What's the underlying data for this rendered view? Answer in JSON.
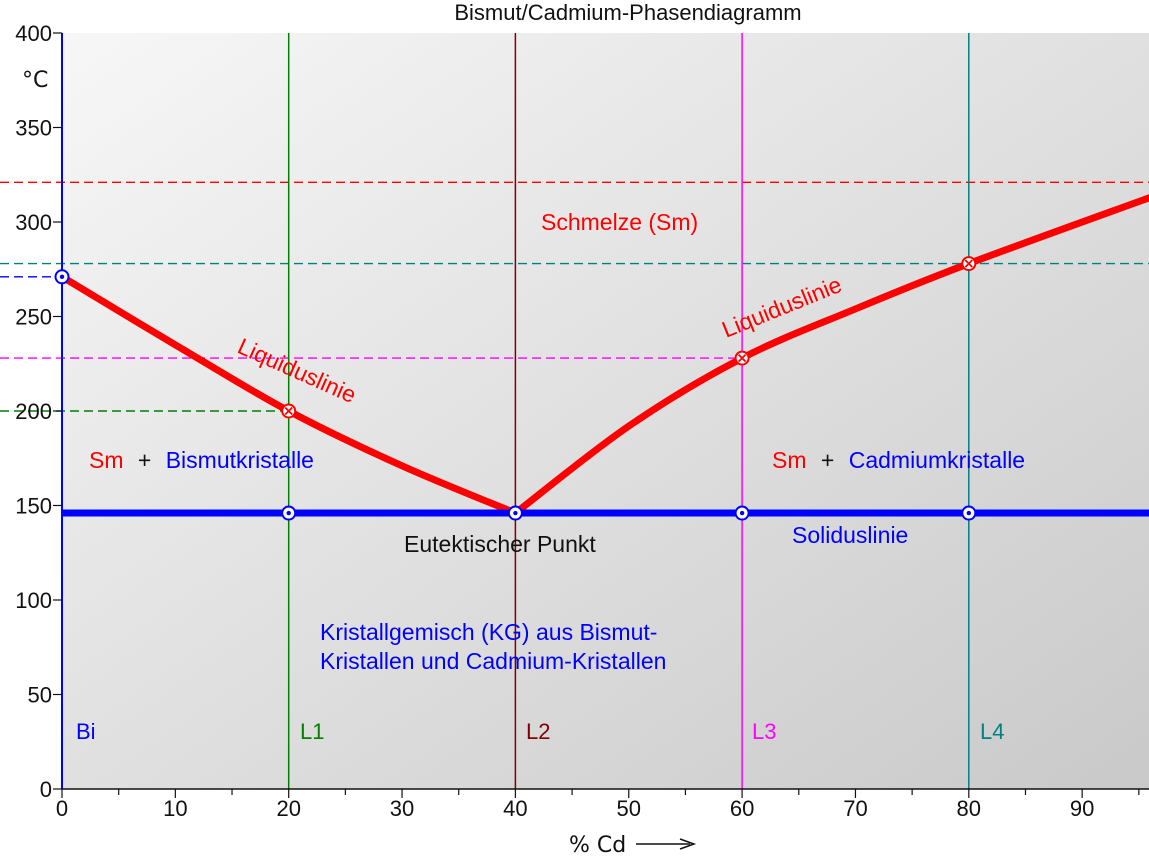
{
  "title": "Bismut/Cadmium-Phasendiagramm",
  "colors": {
    "red": "#ff0000",
    "blue": "#0000ff",
    "l1": "#008000",
    "l2": "#800000",
    "l3": "#ff00ff",
    "l4": "#008080",
    "blue_hline": "#0000ff",
    "green_hline": "#008000",
    "magenta_hline": "#ff00ff",
    "teal_hline": "#008080",
    "red_hline": "#ff0000"
  },
  "chart_data": {
    "type": "line",
    "title": "Bismut/Cadmium-Phasendiagramm",
    "xlabel": "% Cd",
    "ylabel": "°C",
    "xlim": [
      0,
      96
    ],
    "ylim": [
      0,
      400
    ],
    "xticks": [
      "0",
      "10",
      "20",
      "30",
      "40",
      "50",
      "60",
      "70",
      "80",
      "90"
    ],
    "yticks": [
      "0",
      "50",
      "100",
      "150",
      "200",
      "250",
      "300",
      "350",
      "400"
    ],
    "liquidus_left": [
      [
        0,
        271
      ],
      [
        10,
        235
      ],
      [
        20,
        200
      ],
      [
        30,
        171
      ],
      [
        40,
        146
      ]
    ],
    "liquidus_right": [
      [
        40,
        146
      ],
      [
        50,
        192
      ],
      [
        60,
        228
      ],
      [
        70,
        254
      ],
      [
        80,
        278
      ],
      [
        96,
        313
      ]
    ],
    "solidus": [
      [
        0,
        146
      ],
      [
        96,
        146
      ]
    ],
    "markers_open": [
      [
        0,
        271
      ],
      [
        20,
        146
      ],
      [
        40,
        146
      ],
      [
        60,
        146
      ],
      [
        80,
        146
      ]
    ],
    "markers_cross": [
      [
        20,
        200
      ],
      [
        60,
        228
      ],
      [
        80,
        278
      ]
    ],
    "vlines": [
      {
        "name": "L1",
        "x": 20,
        "color": "#008000"
      },
      {
        "name": "L2",
        "x": 40,
        "color": "#800000"
      },
      {
        "name": "L3",
        "x": 60,
        "color": "#ff00ff"
      },
      {
        "name": "L4",
        "x": 80,
        "color": "#008080"
      }
    ],
    "hlines": [
      {
        "y": 321,
        "color": "#ff0000"
      },
      {
        "y": 278,
        "color": "#008080"
      },
      {
        "y": 271,
        "color": "#0000ff"
      },
      {
        "y": 228,
        "color": "#ff00ff"
      },
      {
        "y": 200,
        "color": "#008000"
      }
    ]
  },
  "labels": {
    "schmelze": "Schmelze (Sm)",
    "liquidus_left": "Liquiduslinie",
    "liquidus_right": "Liquiduslinie",
    "sm_left": "Sm",
    "plus_left": "+",
    "bismutkristalle": "Bismutkristalle",
    "sm_right": "Sm",
    "plus_right": "+",
    "cadmiumkristalle": "Cadmiumkristalle",
    "eutektischer_punkt": "Eutektischer Punkt",
    "soliduslinie": "Soliduslinie",
    "kristallgemisch_line1": "Kristallgemisch (KG) aus Bismut-",
    "kristallgemisch_line2": "Kristallen und Cadmium-Kristallen",
    "bi": "Bi",
    "l1": "L1",
    "l2": "L2",
    "l3": "L3",
    "l4": "L4"
  }
}
